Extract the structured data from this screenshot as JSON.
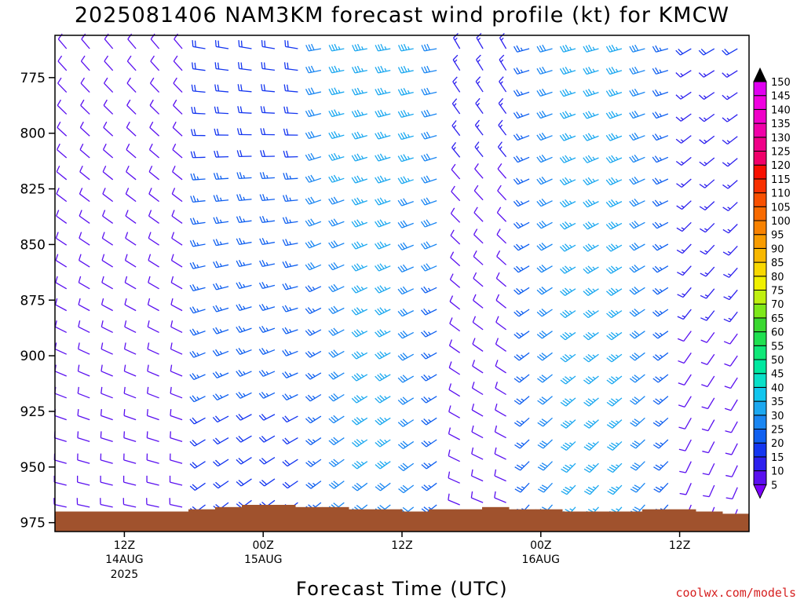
{
  "chart_data": {
    "type": "wind_barb_profile",
    "title": "2025081406 NAM3KM forecast wind profile (kt) for KMCW",
    "xlabel": "Forecast Time (UTC)",
    "ylabel": "",
    "units": "kt",
    "y_axis": {
      "scale": "pressure_hPa",
      "ticks": [
        "775",
        "800",
        "825",
        "850",
        "875",
        "900",
        "925",
        "950",
        "975"
      ],
      "range": [
        756,
        979
      ]
    },
    "x_axis": {
      "range_hours_from_init": [
        0,
        60
      ],
      "ticks": [
        {
          "label": "12Z",
          "sub1": "14AUG",
          "sub2": "2025"
        },
        {
          "label": "00Z",
          "sub1": "15AUG",
          "sub2": ""
        },
        {
          "label": "12Z",
          "sub1": "",
          "sub2": ""
        },
        {
          "label": "00Z",
          "sub1": "16AUG",
          "sub2": ""
        },
        {
          "label": "12Z",
          "sub1": "",
          "sub2": ""
        }
      ]
    },
    "colorbar": {
      "labels": [
        "5",
        "10",
        "15",
        "20",
        "25",
        "30",
        "35",
        "40",
        "45",
        "50",
        "55",
        "60",
        "65",
        "70",
        "75",
        "80",
        "85",
        "90",
        "95",
        "100",
        "105",
        "110",
        "115",
        "120",
        "125",
        "130",
        "135",
        "140",
        "145",
        "150"
      ],
      "colors": [
        "#7b00ff",
        "#5a10f0",
        "#2d20ee",
        "#1436f0",
        "#1060f0",
        "#1a86f2",
        "#1ca8f0",
        "#12c6ee",
        "#0ae0c8",
        "#00e8a0",
        "#10e878",
        "#20e050",
        "#3ad830",
        "#7ee81a",
        "#c0f010",
        "#f0f000",
        "#f8d800",
        "#f8b800",
        "#f89c00",
        "#f88200",
        "#f86a00",
        "#f85000",
        "#f83000",
        "#f81000",
        "#f0006a",
        "#f00088",
        "#f000a8",
        "#f000c8",
        "#f000e0",
        "#e000f0"
      ]
    },
    "ground_pressure_hPa": [
      970,
      970,
      970,
      970,
      970,
      969,
      968,
      967,
      967,
      968,
      968,
      969,
      969,
      970,
      969,
      969,
      968,
      969,
      969,
      970,
      970,
      970,
      969,
      969,
      970,
      971
    ],
    "wind_summary": "Light winds (5-15 kt) from the northwest/north early; stronger southwest to west 20-40 kt aloft through 15 Aug; backing and strengthening again on 16 Aug; light and variable near the surface at the end of the period."
  },
  "credit": "coolwx.com/models"
}
